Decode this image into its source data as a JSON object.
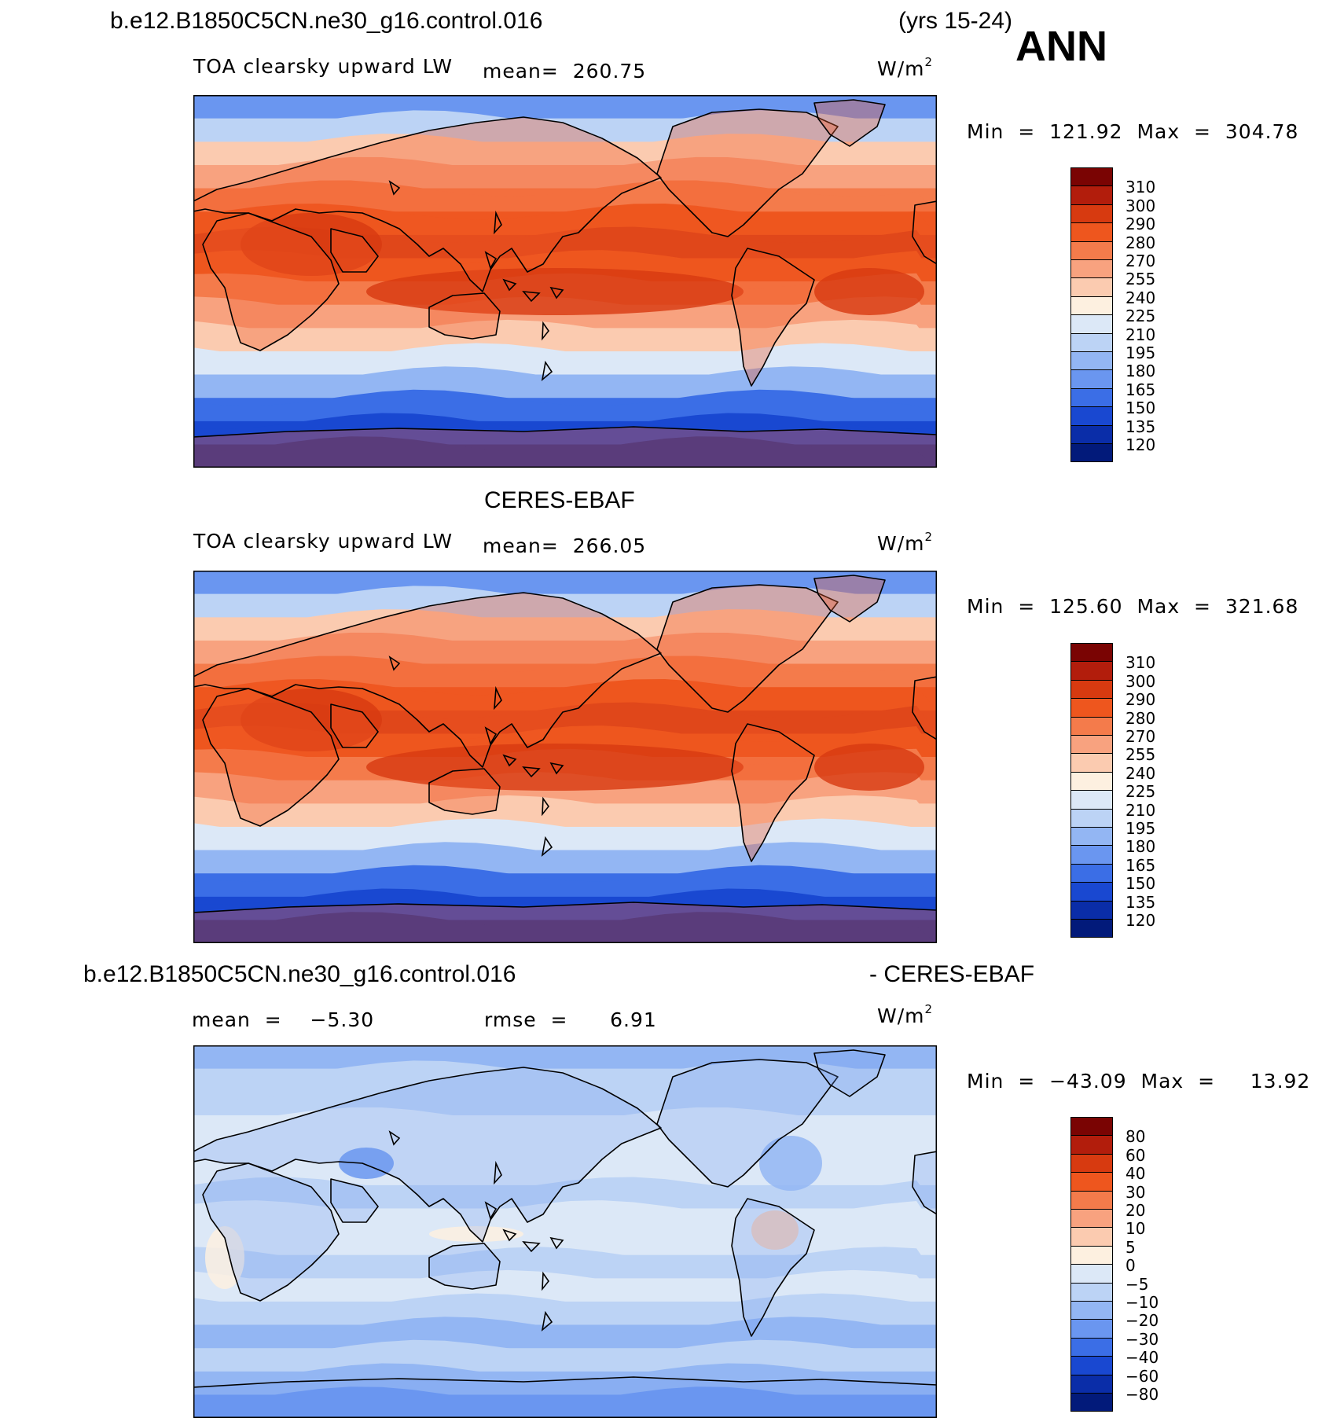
{
  "header": {
    "case_name": "b.e12.B1850C5CN.ne30_g16.control.016",
    "years": "(yrs 15-24)",
    "season": "ANN"
  },
  "panels": [
    {
      "id": "model",
      "title": "",
      "variable": "TOA clearsky upward LW",
      "mean_text": "mean=  260.75",
      "units": "W/m",
      "units_sup": "2",
      "minmax_text": "Min  =  121.92  Max  =  304.78",
      "palette": "warm",
      "levels": [
        "310",
        "300",
        "290",
        "280",
        "270",
        "255",
        "240",
        "225",
        "210",
        "195",
        "180",
        "165",
        "150",
        "135",
        "120"
      ]
    },
    {
      "id": "obs",
      "title": "CERES-EBAF",
      "variable": "TOA clearsky upward LW",
      "mean_text": "mean=  266.05",
      "units": "W/m",
      "units_sup": "2",
      "minmax_text": "Min  =  125.60  Max  =  321.68",
      "palette": "warm",
      "levels": [
        "310",
        "300",
        "290",
        "280",
        "270",
        "255",
        "240",
        "225",
        "210",
        "195",
        "180",
        "165",
        "150",
        "135",
        "120"
      ]
    },
    {
      "id": "diff",
      "title_left": "b.e12.B1850C5CN.ne30_g16.control.016",
      "title_right": "- CERES-EBAF",
      "mean_text": "mean  =    −5.30",
      "rmse_text": "rmse  =      6.91",
      "units": "W/m",
      "units_sup": "2",
      "minmax_text": "Min  =  −43.09  Max  =     13.92",
      "palette": "diff",
      "levels": [
        "80",
        "60",
        "40",
        "30",
        "20",
        "10",
        "5",
        "0",
        "−5",
        "−10",
        "−20",
        "−30",
        "−40",
        "−60",
        "−80"
      ]
    }
  ],
  "colors": {
    "colorbar": [
      "#7a0403",
      "#b21d0c",
      "#d73a10",
      "#ee561e",
      "#f47b4b",
      "#f8a27f",
      "#fbcbb0",
      "#fdf0e0",
      "#dce8f7",
      "#bcd3f5",
      "#93b6f3",
      "#6a96f0",
      "#3b6ee6",
      "#1948d1",
      "#0a2da8",
      "#021a7a"
    ],
    "warm_bands": [
      "#6a96f0",
      "#bcd3f5",
      "#fbcbb0",
      "#f8a27f",
      "#f47b4b",
      "#ee561e",
      "#e0471a",
      "#ee561e",
      "#f47b4b",
      "#f8a27f",
      "#fbcbb0",
      "#dce8f7",
      "#93b6f3",
      "#3b6ee6",
      "#1948d1",
      "#0a2da8"
    ],
    "diff_bands": [
      "#93b6f3",
      "#bcd3f5",
      "#bcd3f5",
      "#dce8f7",
      "#dce8f7",
      "#dce8f7",
      "#bcd3f5",
      "#dce8f7",
      "#dce8f7",
      "#bcd3f5",
      "#dce8f7",
      "#bcd3f5",
      "#93b6f3",
      "#bcd3f5",
      "#93b6f3",
      "#6a96f0"
    ],
    "land": "rgba(240,90,40,0.35)",
    "coast": "#000000"
  }
}
